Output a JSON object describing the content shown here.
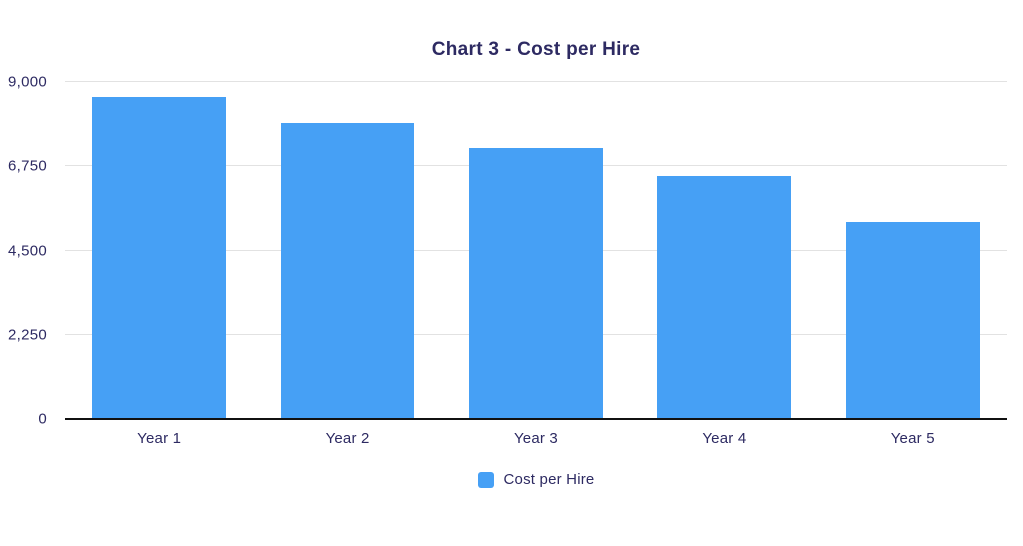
{
  "chart_data": {
    "type": "bar",
    "title": "Chart 3 - Cost per Hire",
    "categories": [
      "Year 1",
      "Year 2",
      "Year 3",
      "Year 4",
      "Year 5"
    ],
    "series": [
      {
        "name": "Cost per Hire",
        "values": [
          8600,
          7900,
          7250,
          6500,
          5250
        ]
      }
    ],
    "xlabel": "",
    "ylabel": "",
    "ylim": [
      0,
      9000
    ],
    "yticks": [
      0,
      2250,
      4500,
      6750,
      9000
    ],
    "ytick_labels": [
      "0",
      "2,250",
      "4,500",
      "6,750",
      "9,000"
    ],
    "grid": true,
    "legend_position": "bottom",
    "colors": {
      "bar": "#46a0f5",
      "text": "#2d2a62",
      "gridline": "#e2e2e2",
      "axis_line": "#111111",
      "background": "#ffffff"
    }
  }
}
